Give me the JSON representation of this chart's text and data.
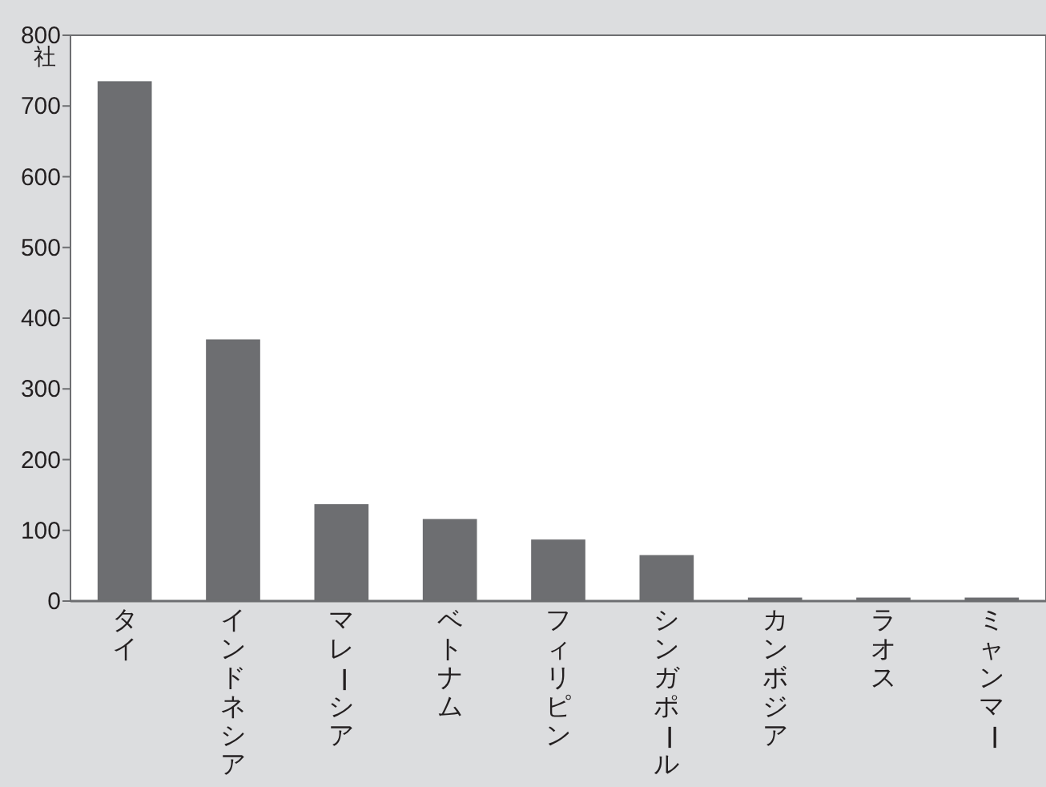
{
  "chart_data": {
    "type": "bar",
    "ylabel": "社",
    "categories": [
      "タイ",
      "インドネシア",
      "マレーシア",
      "ベトナム",
      "フィリピン",
      "シンガポール",
      "カンボジア",
      "ラオス",
      "ミャンマー"
    ],
    "values": [
      735,
      370,
      137,
      116,
      87,
      65,
      5,
      5,
      5
    ],
    "color": "#6d6e71",
    "ylim": [
      0,
      800
    ],
    "yticks": [
      0,
      100,
      200,
      300,
      400,
      500,
      600,
      700,
      800
    ],
    "grid": false
  }
}
